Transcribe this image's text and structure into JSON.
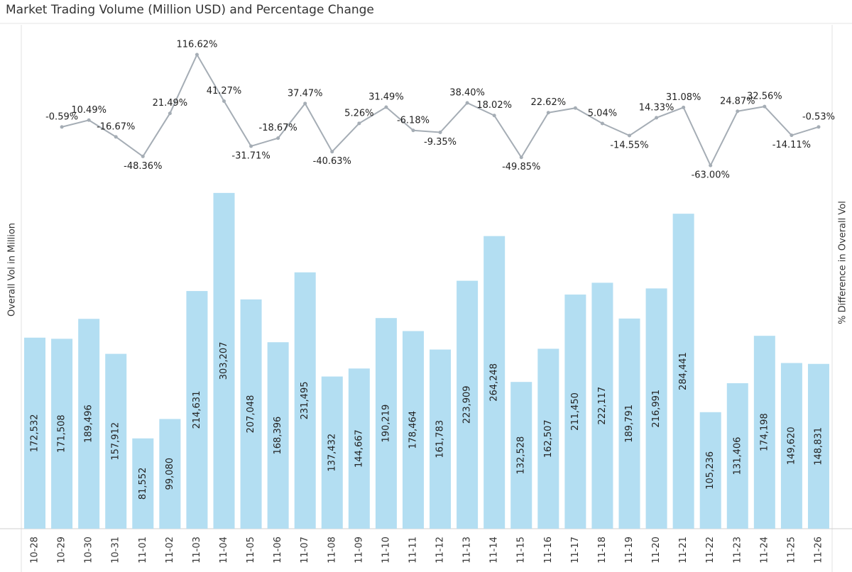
{
  "chart_data": {
    "type": "combo",
    "title": "Market Trading Volume (Million USD) and Percentage Change",
    "ylabel": "Overall Vol in Million",
    "y2label": "% Difference in Overall Vol",
    "categories": [
      "10-28",
      "10-29",
      "10-30",
      "10-31",
      "11-01",
      "11-02",
      "11-03",
      "11-04",
      "11-05",
      "11-06",
      "11-07",
      "11-08",
      "11-09",
      "11-10",
      "11-11",
      "11-12",
      "11-13",
      "11-14",
      "11-15",
      "11-16",
      "11-17",
      "11-18",
      "11-19",
      "11-20",
      "11-21",
      "11-22",
      "11-23",
      "11-24",
      "11-25",
      "11-26"
    ],
    "ylim": [
      0,
      455000
    ],
    "y2lim": [
      -652,
      165
    ],
    "series": [
      {
        "type": "bar",
        "color": "#b3def2",
        "values": [
          172532,
          171508,
          189496,
          157912,
          81552,
          99080,
          214631,
          303207,
          207048,
          168396,
          231495,
          137432,
          144667,
          190219,
          178464,
          161783,
          223909,
          264248,
          132528,
          162507,
          211450,
          222117,
          189791,
          216991,
          284441,
          105236,
          131406,
          174198,
          149620,
          148831
        ],
        "value_labels": [
          "172,532",
          "171,508",
          "189,496",
          "157,912",
          "81,552",
          "99,080",
          "214,631",
          "303,207",
          "207,048",
          "168,396",
          "231,495",
          "137,432",
          "144,667",
          "190,219",
          "178,464",
          "161,783",
          "223,909",
          "264,248",
          "132,528",
          "162,507",
          "211,450",
          "222,117",
          "189,791",
          "216,991",
          "284,441",
          "105,236",
          "131,406",
          "174,198",
          "149,620",
          "148,831"
        ]
      },
      {
        "type": "line",
        "axis": "y2",
        "color": "#a5adb5",
        "values": [
          null,
          -0.59,
          10.49,
          -16.67,
          -48.36,
          21.49,
          116.62,
          41.27,
          -31.71,
          -18.67,
          37.47,
          -40.63,
          5.26,
          31.49,
          -6.18,
          -9.35,
          38.4,
          18.02,
          -49.85,
          22.62,
          30.1,
          5.04,
          -14.55,
          14.33,
          31.08,
          -63.0,
          24.87,
          32.56,
          -14.11,
          -0.53
        ],
        "value_labels": [
          null,
          "-0.59%",
          "10.49%",
          "-16.67%",
          "-48.36%",
          "21.49%",
          "116.62%",
          "41.27%",
          "-31.71%",
          "-18.67%",
          "37.47%",
          "-40.63%",
          "5.26%",
          "31.49%",
          "-6.18%",
          "-9.35%",
          "38.40%",
          "18.02%",
          "-49.85%",
          "22.62%",
          null,
          "5.04%",
          "-14.55%",
          "14.33%",
          "31.08%",
          "-63.00%",
          "24.87%",
          "32.56%",
          "-14.11%",
          "-0.53%"
        ]
      }
    ]
  }
}
